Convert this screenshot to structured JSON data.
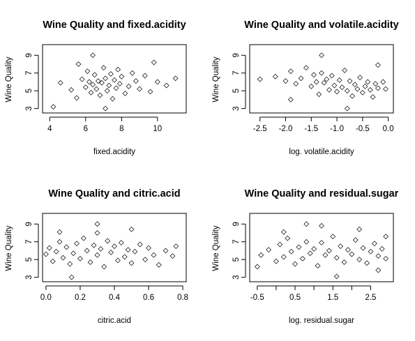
{
  "figure": {
    "background": "#ffffff",
    "point_color": "#000000",
    "point_shape": "open-diamond"
  },
  "chart_data": [
    {
      "type": "scatter",
      "title": "Wine Quality and  fixed.acidity",
      "xlabel": "fixed.acidity",
      "ylabel": "Wine Quality",
      "xlim": [
        3.6,
        11.6
      ],
      "ylim": [
        2.5,
        10.2
      ],
      "xticks": [
        "4",
        "6",
        "8",
        "10"
      ],
      "xtick_values": [
        4,
        6,
        8,
        10
      ],
      "yticks": [
        "3",
        "5",
        "7",
        "9"
      ],
      "ytick_values": [
        3,
        5,
        7,
        9
      ],
      "grid": false,
      "legend": "none",
      "points": [
        [
          5.2,
          5.1
        ],
        [
          5.5,
          4.2
        ],
        [
          5.8,
          6.3
        ],
        [
          6.0,
          5.4
        ],
        [
          6.1,
          7.2
        ],
        [
          6.2,
          6.0
        ],
        [
          6.3,
          4.8
        ],
        [
          6.4,
          5.7
        ],
        [
          6.5,
          6.8
        ],
        [
          6.6,
          5.2
        ],
        [
          6.7,
          6.1
        ],
        [
          6.8,
          4.5
        ],
        [
          6.9,
          5.9
        ],
        [
          7.0,
          7.6
        ],
        [
          7.1,
          6.4
        ],
        [
          7.2,
          5.0
        ],
        [
          7.3,
          5.6
        ],
        [
          7.4,
          6.9
        ],
        [
          7.5,
          4.1
        ],
        [
          7.6,
          6.2
        ],
        [
          7.7,
          5.3
        ],
        [
          7.8,
          7.4
        ],
        [
          7.9,
          5.8
        ],
        [
          8.0,
          6.6
        ],
        [
          8.2,
          4.7
        ],
        [
          8.4,
          5.5
        ],
        [
          8.6,
          7.0
        ],
        [
          8.8,
          6.1
        ],
        [
          9.0,
          5.2
        ],
        [
          9.3,
          6.7
        ],
        [
          9.6,
          4.9
        ],
        [
          10.0,
          6.0
        ],
        [
          10.5,
          5.6
        ],
        [
          11.0,
          6.4
        ],
        [
          4.6,
          5.9
        ],
        [
          4.2,
          3.2
        ],
        [
          6.4,
          9.0
        ],
        [
          7.1,
          3.0
        ],
        [
          5.6,
          8.0
        ],
        [
          9.8,
          8.2
        ]
      ]
    },
    {
      "type": "scatter",
      "title": "Wine Quality and  volatile.acidity",
      "xlabel": "log.  volatile.acidity",
      "ylabel": "Wine Quality",
      "xlim": [
        -2.7,
        0.1
      ],
      "ylim": [
        2.5,
        10.2
      ],
      "xticks": [
        "-2.5",
        "-2.0",
        "-1.5",
        "-1.0",
        "-0.5",
        "0.0"
      ],
      "xtick_values": [
        -2.5,
        -2.0,
        -1.5,
        -1.0,
        -0.5,
        0.0
      ],
      "yticks": [
        "3",
        "5",
        "7",
        "9"
      ],
      "ytick_values": [
        3,
        5,
        7,
        9
      ],
      "grid": false,
      "legend": "none",
      "points": [
        [
          -2.2,
          6.6
        ],
        [
          -2.0,
          6.1
        ],
        [
          -1.9,
          7.2
        ],
        [
          -1.8,
          5.8
        ],
        [
          -1.7,
          6.4
        ],
        [
          -1.6,
          7.6
        ],
        [
          -1.5,
          5.5
        ],
        [
          -1.45,
          6.8
        ],
        [
          -1.4,
          6.0
        ],
        [
          -1.35,
          4.6
        ],
        [
          -1.3,
          7.0
        ],
        [
          -1.25,
          5.9
        ],
        [
          -1.2,
          6.3
        ],
        [
          -1.15,
          5.1
        ],
        [
          -1.1,
          6.7
        ],
        [
          -1.05,
          5.6
        ],
        [
          -1.0,
          4.9
        ],
        [
          -0.95,
          6.2
        ],
        [
          -0.9,
          5.4
        ],
        [
          -0.85,
          7.3
        ],
        [
          -0.8,
          5.0
        ],
        [
          -0.75,
          6.1
        ],
        [
          -0.7,
          4.4
        ],
        [
          -0.65,
          5.7
        ],
        [
          -0.6,
          5.2
        ],
        [
          -0.55,
          6.5
        ],
        [
          -0.5,
          4.8
        ],
        [
          -0.45,
          5.5
        ],
        [
          -0.4,
          6.0
        ],
        [
          -0.35,
          5.1
        ],
        [
          -0.3,
          4.3
        ],
        [
          -0.25,
          5.8
        ],
        [
          -0.2,
          5.3
        ],
        [
          -0.1,
          6.0
        ],
        [
          -0.05,
          5.2
        ],
        [
          -2.5,
          6.3
        ],
        [
          -1.3,
          9.0
        ],
        [
          -0.8,
          3.0
        ],
        [
          -1.9,
          4.0
        ],
        [
          -0.2,
          7.9
        ]
      ]
    },
    {
      "type": "scatter",
      "title": "Wine Quality and  citric.acid",
      "xlabel": "citric.acid",
      "ylabel": "Wine Quality",
      "xlim": [
        -0.02,
        0.82
      ],
      "ylim": [
        2.5,
        10.2
      ],
      "xticks": [
        "0.0",
        "0.2",
        "0.4",
        "0.6",
        "0.8"
      ],
      "xtick_values": [
        0.0,
        0.2,
        0.4,
        0.6,
        0.8
      ],
      "yticks": [
        "3",
        "5",
        "7",
        "9"
      ],
      "ytick_values": [
        3,
        5,
        7,
        9
      ],
      "grid": false,
      "legend": "none",
      "points": [
        [
          0.0,
          5.6
        ],
        [
          0.02,
          6.3
        ],
        [
          0.04,
          4.8
        ],
        [
          0.06,
          5.9
        ],
        [
          0.08,
          7.0
        ],
        [
          0.1,
          5.2
        ],
        [
          0.12,
          6.4
        ],
        [
          0.14,
          4.5
        ],
        [
          0.16,
          5.7
        ],
        [
          0.18,
          6.8
        ],
        [
          0.2,
          5.1
        ],
        [
          0.22,
          7.4
        ],
        [
          0.24,
          6.0
        ],
        [
          0.26,
          4.7
        ],
        [
          0.28,
          6.6
        ],
        [
          0.3,
          5.5
        ],
        [
          0.3,
          8.0
        ],
        [
          0.32,
          6.2
        ],
        [
          0.34,
          4.2
        ],
        [
          0.36,
          7.1
        ],
        [
          0.38,
          5.8
        ],
        [
          0.4,
          6.5
        ],
        [
          0.42,
          4.9
        ],
        [
          0.44,
          6.9
        ],
        [
          0.46,
          5.3
        ],
        [
          0.48,
          6.1
        ],
        [
          0.5,
          4.6
        ],
        [
          0.52,
          5.9
        ],
        [
          0.55,
          6.7
        ],
        [
          0.58,
          5.0
        ],
        [
          0.6,
          6.3
        ],
        [
          0.63,
          5.5
        ],
        [
          0.66,
          4.4
        ],
        [
          0.7,
          6.0
        ],
        [
          0.74,
          5.4
        ],
        [
          0.76,
          6.5
        ],
        [
          0.3,
          9.0
        ],
        [
          0.15,
          3.0
        ],
        [
          0.5,
          8.4
        ],
        [
          0.08,
          8.1
        ]
      ]
    },
    {
      "type": "scatter",
      "title": "Wine Quality and  residual.sugar",
      "xlabel": "log. residual.sugar",
      "ylabel": "Wine Quality",
      "xlim": [
        -0.7,
        3.1
      ],
      "ylim": [
        2.5,
        10.2
      ],
      "xticks": [
        "-0.5",
        "0.5",
        "1.5",
        "2.5"
      ],
      "xtick_values": [
        -0.5,
        0.5,
        1.5,
        2.5
      ],
      "xticks_minor": [
        0.0,
        1.0,
        2.0
      ],
      "yticks": [
        "3",
        "5",
        "7",
        "9"
      ],
      "ytick_values": [
        3,
        5,
        7,
        9
      ],
      "grid": false,
      "legend": "none",
      "points": [
        [
          -0.4,
          5.5
        ],
        [
          -0.2,
          6.1
        ],
        [
          0.0,
          4.8
        ],
        [
          0.1,
          6.7
        ],
        [
          0.2,
          5.3
        ],
        [
          0.3,
          7.4
        ],
        [
          0.4,
          5.9
        ],
        [
          0.5,
          4.5
        ],
        [
          0.6,
          6.4
        ],
        [
          0.7,
          5.1
        ],
        [
          0.8,
          7.0
        ],
        [
          0.9,
          5.7
        ],
        [
          1.0,
          6.2
        ],
        [
          1.1,
          4.3
        ],
        [
          1.2,
          6.9
        ],
        [
          1.3,
          5.5
        ],
        [
          1.4,
          6.0
        ],
        [
          1.5,
          7.6
        ],
        [
          1.6,
          5.2
        ],
        [
          1.7,
          6.5
        ],
        [
          1.8,
          4.7
        ],
        [
          1.9,
          6.1
        ],
        [
          2.0,
          5.6
        ],
        [
          2.1,
          7.2
        ],
        [
          2.2,
          5.0
        ],
        [
          2.3,
          6.3
        ],
        [
          2.4,
          4.6
        ],
        [
          2.5,
          5.9
        ],
        [
          2.6,
          6.8
        ],
        [
          2.7,
          5.4
        ],
        [
          2.8,
          6.2
        ],
        [
          2.9,
          5.1
        ],
        [
          0.8,
          9.0
        ],
        [
          1.6,
          3.1
        ],
        [
          2.2,
          8.4
        ],
        [
          0.2,
          8.1
        ],
        [
          2.7,
          3.8
        ],
        [
          -0.5,
          4.2
        ],
        [
          1.2,
          8.8
        ],
        [
          2.9,
          7.6
        ]
      ]
    }
  ]
}
